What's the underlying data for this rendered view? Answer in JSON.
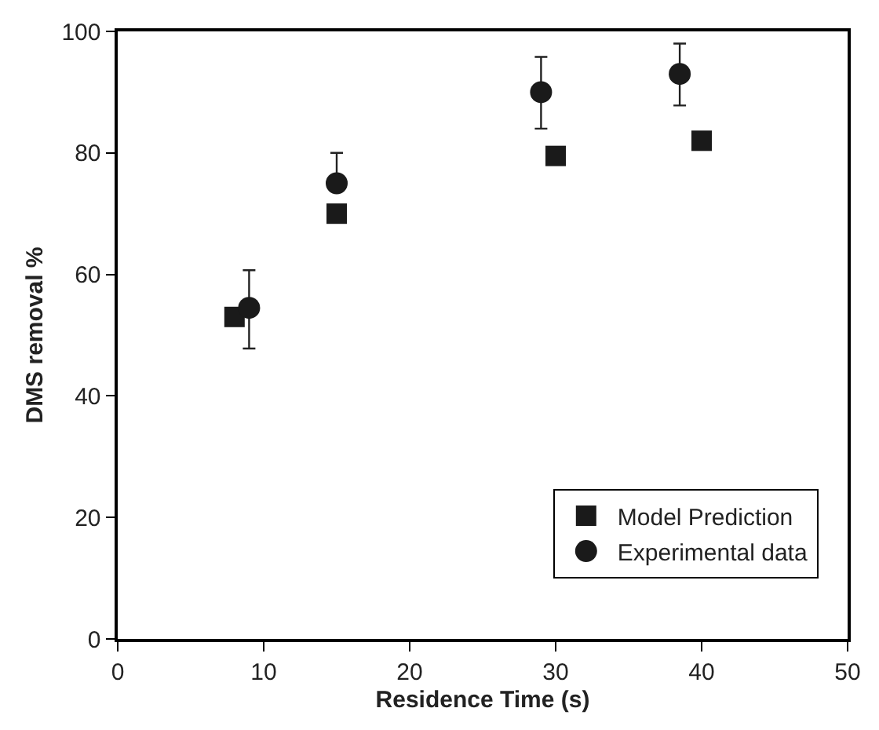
{
  "chart_data": {
    "type": "scatter",
    "xlabel": "Residence Time (s)",
    "ylabel": "DMS removal %",
    "xlim": [
      0,
      50
    ],
    "xticks": [
      0,
      10,
      20,
      30,
      40,
      50
    ],
    "ylim": [
      0,
      100
    ],
    "yticks": [
      0,
      20,
      40,
      60,
      80,
      100
    ],
    "legend": "bottom right",
    "series": [
      {
        "name": "Model Prediction",
        "color": "#1a1a1a",
        "marker": "square",
        "x": [
          8,
          15,
          30,
          40
        ],
        "values": [
          53,
          70,
          79.5,
          82
        ]
      },
      {
        "name": "Experimental data",
        "color": "#1a1a1a",
        "marker": "circle",
        "x": [
          9,
          15,
          29,
          38.5
        ],
        "values": [
          54.5,
          75,
          90,
          93
        ],
        "errors": [
          [
            47.8,
            60.7
          ],
          [
            75,
            80
          ],
          [
            84,
            95.8
          ],
          [
            87.8,
            98
          ]
        ]
      }
    ]
  }
}
